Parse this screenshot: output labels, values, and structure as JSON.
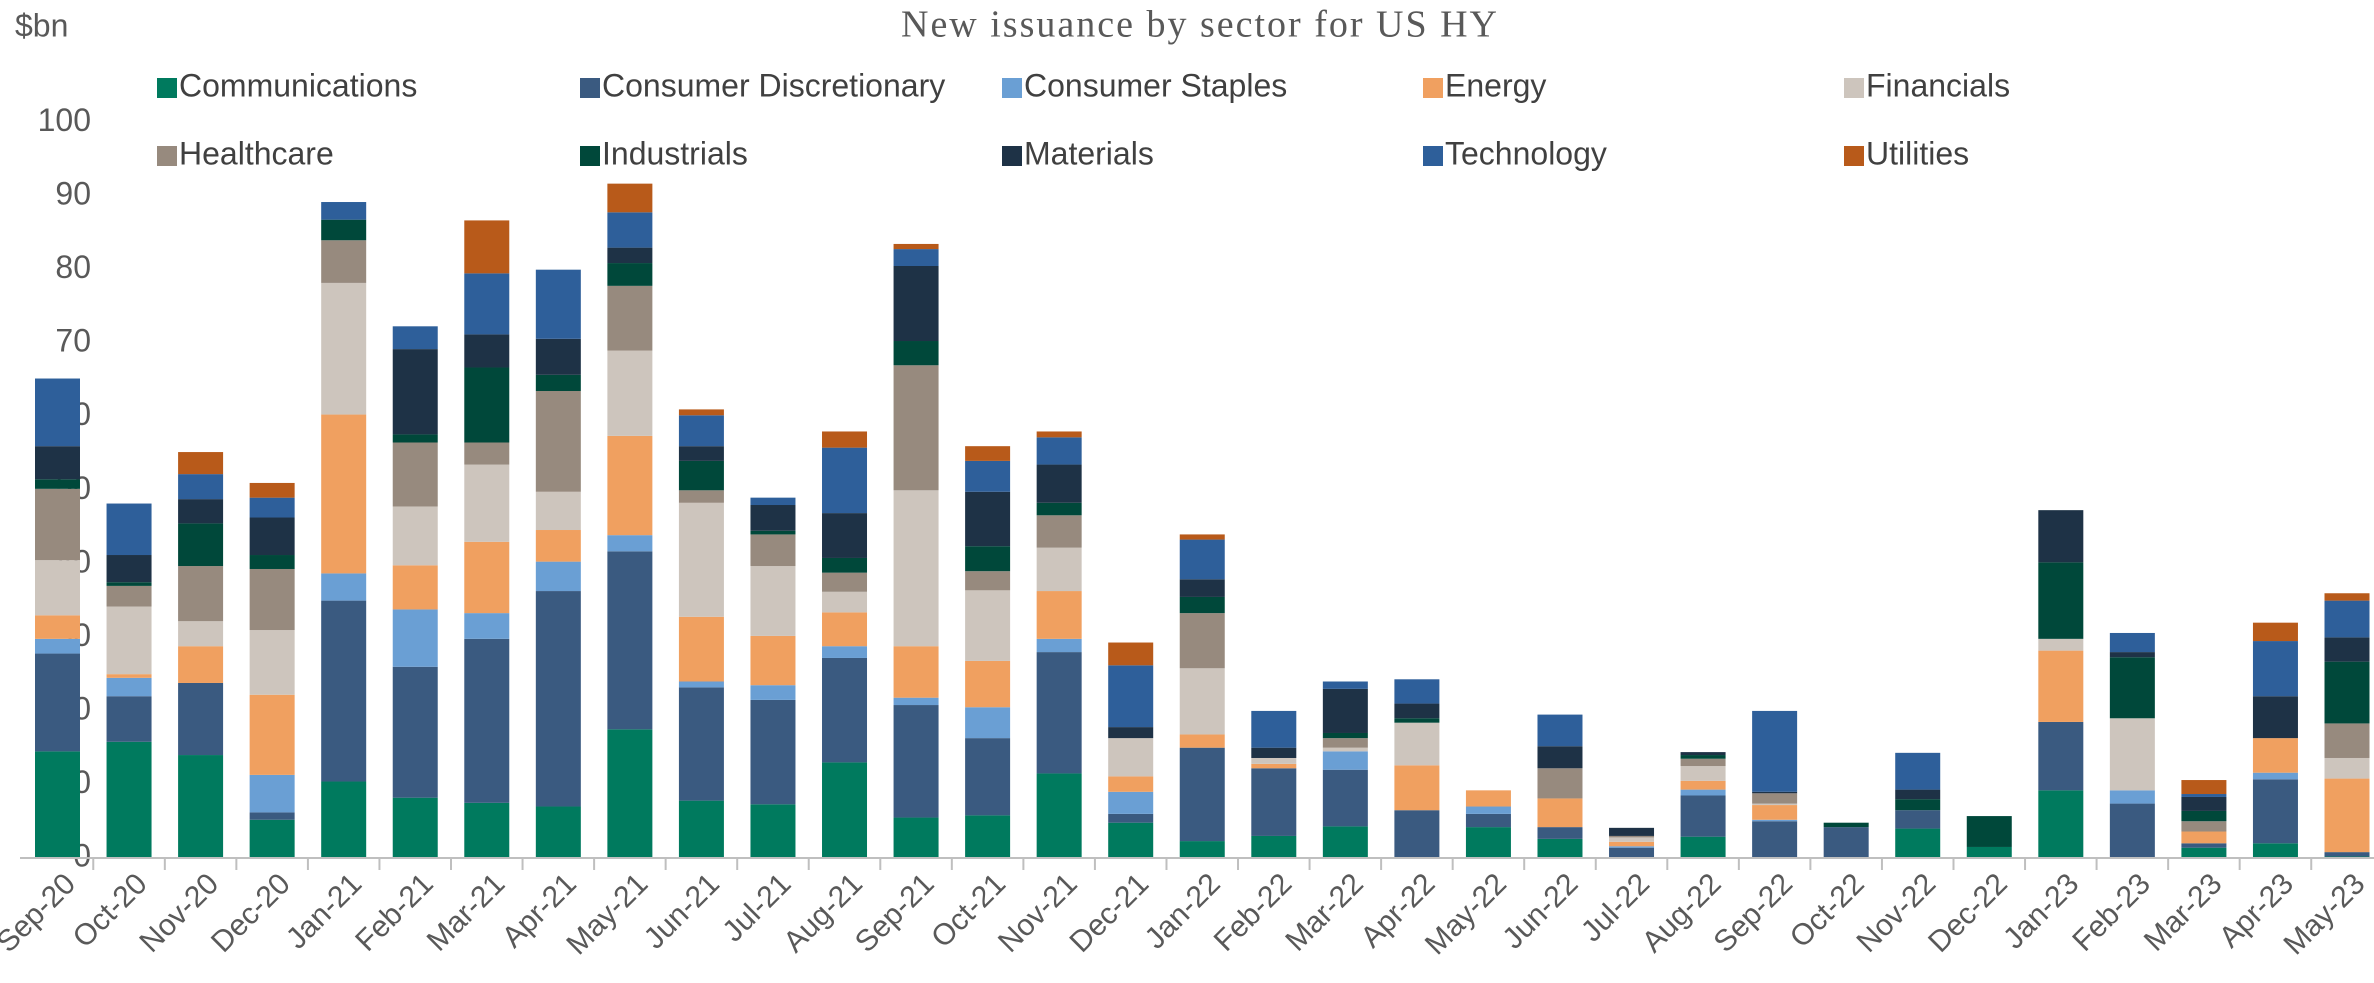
{
  "chart_data": {
    "type": "stacked_bar",
    "title": "New issuance by sector for US HY",
    "ylabel": "$bn",
    "categories": [
      "Sep-20",
      "Oct-20",
      "Nov-20",
      "Dec-20",
      "Jan-21",
      "Feb-21",
      "Mar-21",
      "Apr-21",
      "May-21",
      "Jun-21",
      "Jul-21",
      "Aug-21",
      "Sep-21",
      "Oct-21",
      "Nov-21",
      "Dec-21",
      "Jan-22",
      "Feb-22",
      "Mar-22",
      "Apr-22",
      "May-22",
      "Jun-22",
      "Jul-22",
      "Aug-22",
      "Sep-22",
      "Oct-22",
      "Nov-22",
      "Dec-22",
      "Jan-23",
      "Feb-23",
      "Mar-23",
      "Apr-23",
      "May-23"
    ],
    "series": [
      {
        "name": "Communications",
        "color": "#007a5e",
        "values": [
          14.5,
          15.8,
          14,
          5.2,
          10.4,
          8.2,
          7.5,
          7,
          17.5,
          7.8,
          7.3,
          13,
          5.5,
          5.8,
          11.5,
          4.8,
          2.3,
          3,
          4.3,
          0,
          4.2,
          2.6,
          0,
          2.9,
          0,
          0,
          4,
          1.5,
          9.2,
          0,
          1.4,
          2,
          0.2
        ]
      },
      {
        "name": "Consumer Discretionary",
        "color": "#3a5a80",
        "values": [
          13.3,
          6.2,
          9.8,
          1,
          24.6,
          17.8,
          22.3,
          29.3,
          24.2,
          15.4,
          14.2,
          14.2,
          15.3,
          10.5,
          16.5,
          1.2,
          12.7,
          9.2,
          7.7,
          6.5,
          1.8,
          1.6,
          1.4,
          5.6,
          5,
          4.2,
          2.5,
          0,
          9.3,
          7.4,
          0.6,
          8.7,
          0.6
        ]
      },
      {
        "name": "Consumer Staples",
        "color": "#6a9fd4",
        "values": [
          2,
          2.5,
          0,
          5.1,
          3.7,
          7.8,
          3.5,
          4,
          2.2,
          0.8,
          2,
          1.6,
          1,
          4.2,
          1.8,
          3,
          0,
          0,
          2.5,
          0,
          1,
          0,
          0.2,
          0.8,
          0.2,
          0,
          0,
          0,
          0,
          1.8,
          0,
          0.9,
          0
        ]
      },
      {
        "name": "Energy",
        "color": "#f0a060",
        "values": [
          3.2,
          0.5,
          5,
          10.9,
          21.6,
          6,
          9.7,
          4.3,
          13.5,
          8.8,
          6.7,
          4.6,
          7,
          6.3,
          6.5,
          2.1,
          1.8,
          0.6,
          0,
          6.1,
          2.2,
          3.9,
          0.6,
          1.2,
          2,
          0,
          0,
          0,
          9.7,
          0,
          1.6,
          4.7,
          10
        ]
      },
      {
        "name": "Financials",
        "color": "#cdc5bd",
        "values": [
          7.5,
          9.2,
          3.4,
          8.8,
          17.9,
          8,
          10.5,
          5.2,
          11.6,
          15.5,
          9.5,
          2.8,
          21.2,
          9.6,
          5.9,
          5.2,
          9,
          0.8,
          0.5,
          5.8,
          0,
          0,
          0.6,
          2,
          0.2,
          0,
          0,
          0,
          1.6,
          9.8,
          0,
          0,
          2.8
        ]
      },
      {
        "name": "Healthcare",
        "color": "#978a7e",
        "values": [
          9.7,
          2.8,
          7.5,
          8.3,
          5.8,
          8.7,
          3,
          13.7,
          8.8,
          1.7,
          4.3,
          2.6,
          17,
          2.6,
          4.4,
          0,
          7.5,
          0,
          1.3,
          0,
          0,
          4.1,
          0.2,
          1,
          1.4,
          0,
          0,
          0,
          0,
          0,
          1.4,
          0,
          4.7
        ]
      },
      {
        "name": "Industrials",
        "color": "#00483a",
        "values": [
          1.3,
          0.5,
          5.8,
          1.9,
          2.8,
          1.1,
          10.2,
          2.2,
          3.1,
          4,
          0.5,
          2,
          3.3,
          3.4,
          1.7,
          0,
          2.2,
          0,
          0.7,
          0.6,
          0,
          0,
          0,
          0.5,
          0,
          0.6,
          1.5,
          4.2,
          10.4,
          8.3,
          1.4,
          0,
          8.4
        ]
      },
      {
        "name": "Materials",
        "color": "#1e3246",
        "values": [
          4.5,
          3.7,
          3.3,
          5.1,
          0,
          11.6,
          4.5,
          4.9,
          2.1,
          2,
          3.5,
          6.1,
          10.2,
          7.4,
          5.2,
          1.5,
          2.4,
          1.4,
          6,
          2,
          0,
          3,
          1.1,
          0.4,
          0.2,
          0,
          1.3,
          0,
          7.1,
          0.7,
          1.9,
          5.7,
          3.3
        ]
      },
      {
        "name": "Technology",
        "color": "#2e5f9a",
        "values": [
          9.2,
          7,
          3.4,
          2.7,
          2.4,
          3.1,
          8.3,
          9.4,
          4.8,
          4.2,
          1,
          8.9,
          2.3,
          4.2,
          3.7,
          8.4,
          5.4,
          5,
          1,
          3.3,
          0,
          4.3,
          0,
          0,
          11,
          0,
          5,
          0,
          0,
          2.6,
          0.4,
          7.5,
          5
        ]
      },
      {
        "name": "Utilities",
        "color": "#b85a1a",
        "values": [
          0,
          0,
          3,
          2,
          0,
          0,
          7.2,
          0,
          3.9,
          0.8,
          0,
          2.2,
          0.7,
          2,
          0.8,
          3.1,
          0.7,
          0,
          0,
          0,
          0,
          0,
          0,
          0,
          0,
          0,
          0,
          0,
          0,
          0,
          1.9,
          2.5,
          1
        ]
      }
    ],
    "ylim": [
      0,
      100
    ],
    "yticks": [
      0,
      10,
      20,
      30,
      40,
      50,
      60,
      70,
      80,
      90,
      100
    ],
    "grid": false
  }
}
